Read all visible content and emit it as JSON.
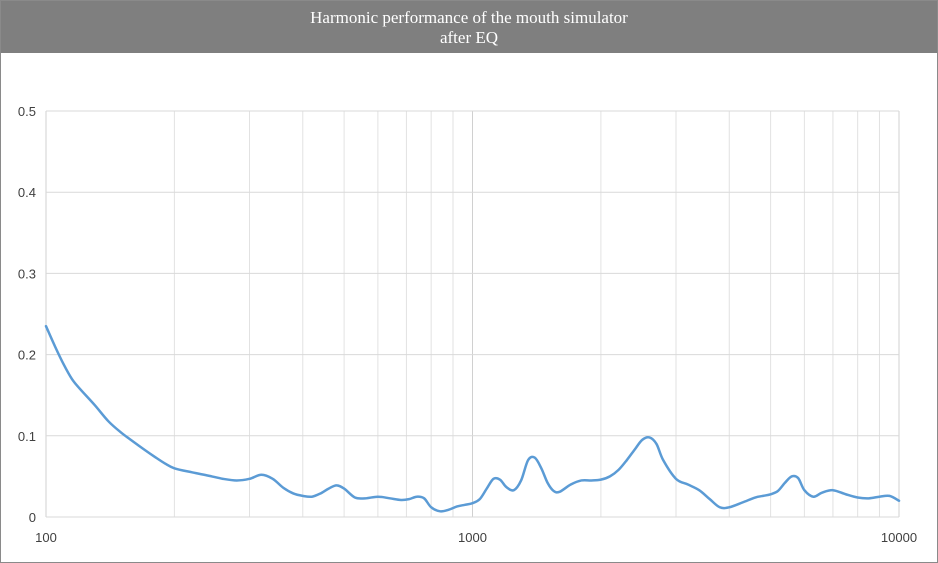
{
  "chart_data": {
    "type": "line",
    "title": "Harmonic performance of the mouth simulator",
    "subtitle": "after EQ",
    "xlabel": "",
    "ylabel": "",
    "x_scale": "log",
    "xlim": [
      100,
      10000
    ],
    "ylim": [
      0,
      0.5
    ],
    "grid": true,
    "legend": "none",
    "x_ticks": [
      "100",
      "1000",
      "10000"
    ],
    "y_ticks": [
      "0",
      "0.1",
      "0.2",
      "0.3",
      "0.4",
      "0.5"
    ],
    "series": [
      {
        "color": "#5b9bd5",
        "x": [
          100,
          105,
          110,
          115,
          120,
          130,
          140,
          150,
          160,
          170,
          180,
          190,
          200,
          220,
          240,
          260,
          280,
          300,
          320,
          340,
          360,
          380,
          400,
          420,
          440,
          460,
          480,
          500,
          530,
          560,
          600,
          640,
          680,
          710,
          740,
          770,
          800,
          840,
          880,
          920,
          960,
          1000,
          1040,
          1080,
          1120,
          1160,
          1200,
          1250,
          1300,
          1350,
          1400,
          1450,
          1500,
          1550,
          1600,
          1700,
          1800,
          1900,
          2000,
          2100,
          2200,
          2300,
          2400,
          2500,
          2600,
          2700,
          2800,
          3000,
          3200,
          3400,
          3600,
          3800,
          4000,
          4300,
          4600,
          4800,
          5000,
          5200,
          5400,
          5600,
          5800,
          6000,
          6300,
          6600,
          7000,
          7500,
          8000,
          8500,
          9000,
          9500,
          10000
        ],
        "y": [
          0.235,
          0.21,
          0.188,
          0.17,
          0.158,
          0.138,
          0.118,
          0.104,
          0.093,
          0.083,
          0.074,
          0.066,
          0.06,
          0.055,
          0.051,
          0.047,
          0.045,
          0.047,
          0.052,
          0.047,
          0.036,
          0.029,
          0.026,
          0.025,
          0.029,
          0.035,
          0.039,
          0.035,
          0.024,
          0.023,
          0.025,
          0.023,
          0.021,
          0.022,
          0.025,
          0.023,
          0.012,
          0.007,
          0.009,
          0.013,
          0.015,
          0.017,
          0.022,
          0.035,
          0.047,
          0.046,
          0.037,
          0.033,
          0.045,
          0.07,
          0.073,
          0.06,
          0.042,
          0.032,
          0.031,
          0.04,
          0.045,
          0.045,
          0.046,
          0.05,
          0.058,
          0.07,
          0.083,
          0.095,
          0.098,
          0.09,
          0.07,
          0.047,
          0.04,
          0.033,
          0.022,
          0.012,
          0.012,
          0.018,
          0.024,
          0.026,
          0.028,
          0.032,
          0.042,
          0.05,
          0.048,
          0.033,
          0.025,
          0.03,
          0.033,
          0.028,
          0.024,
          0.023,
          0.025,
          0.026,
          0.02
        ]
      }
    ]
  }
}
